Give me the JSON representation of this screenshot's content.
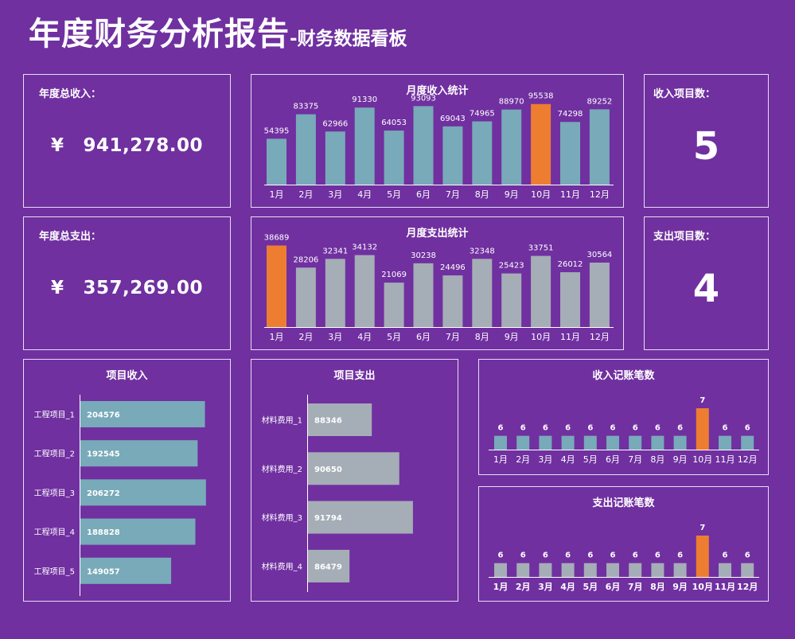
{
  "title": {
    "main": "年度财务分析报告",
    "sub": "-财务数据看板"
  },
  "kpi": {
    "income_label": "年度总收入：",
    "income_currency": "¥",
    "income_value": "941,278.00",
    "expense_label": "年度总支出：",
    "expense_currency": "¥",
    "expense_value": "357,269.00",
    "income_projects_label": "收入项目数：",
    "income_projects_value": "5",
    "expense_projects_label": "支出项目数：",
    "expense_projects_value": "4"
  },
  "colors": {
    "background": "#7030A0",
    "income_bar": "#78AAB9",
    "expense_bar": "#A5ADB6",
    "highlight": "#ED7D31"
  },
  "chart_data": [
    {
      "id": "monthly_income",
      "type": "bar",
      "title": "月度收入统计",
      "categories": [
        "1月",
        "2月",
        "3月",
        "4月",
        "5月",
        "6月",
        "7月",
        "8月",
        "9月",
        "10月",
        "11月",
        "12月"
      ],
      "values": [
        54395,
        83375,
        62966,
        91330,
        64053,
        93093,
        69043,
        74965,
        88970,
        95538,
        74298,
        89252
      ],
      "highlight_index": 9,
      "ylim": [
        0,
        100000
      ]
    },
    {
      "id": "monthly_expense",
      "type": "bar",
      "title": "月度支出统计",
      "categories": [
        "1月",
        "2月",
        "3月",
        "4月",
        "5月",
        "6月",
        "7月",
        "8月",
        "9月",
        "10月",
        "11月",
        "12月"
      ],
      "values": [
        38689,
        28206,
        32341,
        34132,
        21069,
        30238,
        24496,
        32348,
        25423,
        33751,
        26012,
        30564
      ],
      "highlight_index": 0,
      "ylim": [
        0,
        40000
      ]
    },
    {
      "id": "project_income",
      "type": "bar",
      "orientation": "horizontal",
      "title": "项目收入",
      "categories": [
        "工程项目_1",
        "工程项目_2",
        "工程项目_3",
        "工程项目_4",
        "工程项目_5"
      ],
      "values": [
        204576,
        192545,
        206272,
        188828,
        149057
      ],
      "xlim": [
        0,
        230000
      ]
    },
    {
      "id": "project_expense",
      "type": "bar",
      "orientation": "horizontal",
      "title": "项目支出",
      "categories": [
        "材料费用_1",
        "材料费用_2",
        "材料费用_3",
        "材料费用_4"
      ],
      "values": [
        88346,
        90650,
        91794,
        86479
      ],
      "xlim": [
        83000,
        95000
      ]
    },
    {
      "id": "income_count",
      "type": "bar",
      "title": "收入记账笔数",
      "categories": [
        "1月",
        "2月",
        "3月",
        "4月",
        "5月",
        "6月",
        "7月",
        "8月",
        "9月",
        "10月",
        "11月",
        "12月"
      ],
      "values": [
        6,
        6,
        6,
        6,
        6,
        6,
        6,
        6,
        6,
        7,
        6,
        6
      ],
      "highlight_index": 9,
      "ylim": [
        5.5,
        7
      ]
    },
    {
      "id": "expense_count",
      "type": "bar",
      "title": "支出记账笔数",
      "categories": [
        "1月",
        "2月",
        "3月",
        "4月",
        "5月",
        "6月",
        "7月",
        "8月",
        "9月",
        "10月",
        "11月",
        "12月"
      ],
      "values": [
        6,
        6,
        6,
        6,
        6,
        6,
        6,
        6,
        6,
        7,
        6,
        6
      ],
      "highlight_index": 9,
      "ylim": [
        5.5,
        7
      ]
    }
  ]
}
